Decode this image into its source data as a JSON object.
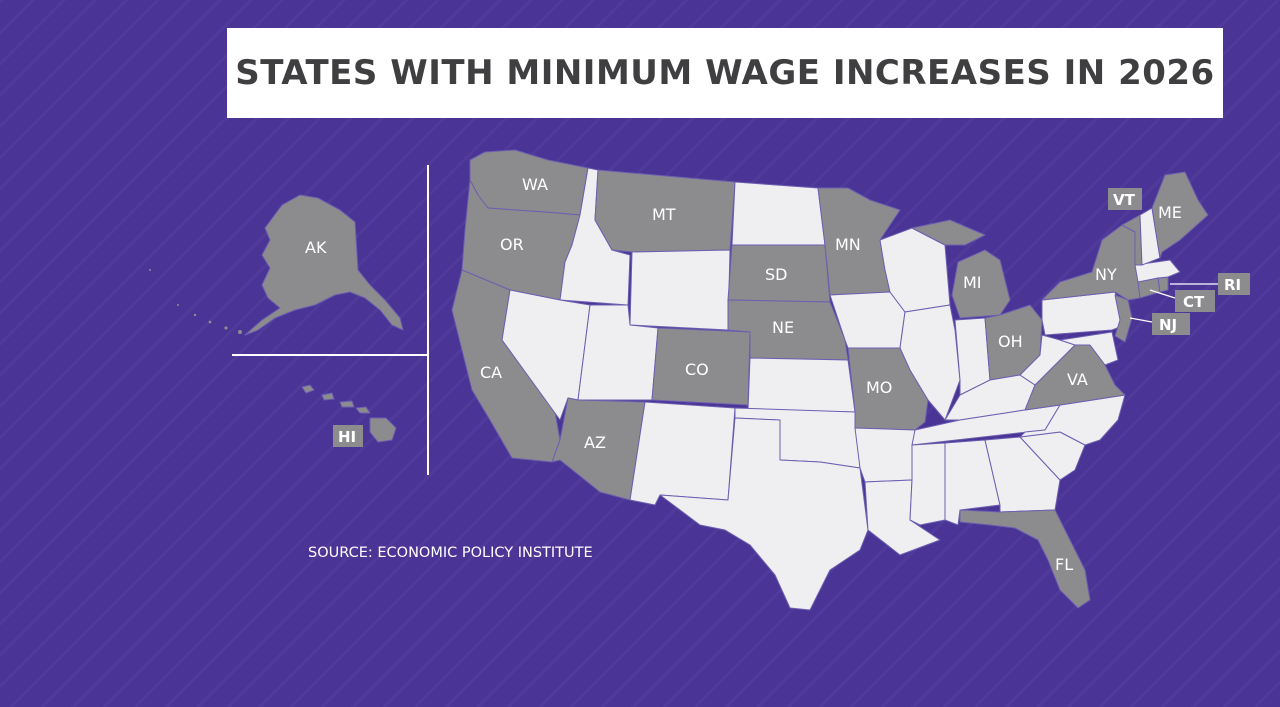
{
  "title": "STATES WITH MINIMUM WAGE INCREASES IN 2026",
  "source": "SOURCE: ECONOMIC POLICY INSTITUTE",
  "colors": {
    "background": "#4a3496",
    "increase": "#8c8c8f",
    "no_increase": "#efeff2",
    "state_border": "#6c5fb0",
    "title_text": "#3f3f41"
  },
  "legend_states": [
    "AK",
    "HI",
    "WA",
    "OR",
    "CA",
    "AZ",
    "MT",
    "CO",
    "SD",
    "NE",
    "MN",
    "MO",
    "MI",
    "OH",
    "VA",
    "FL",
    "NY",
    "VT",
    "ME",
    "RI",
    "CT",
    "NJ"
  ],
  "labels": {
    "AK": "AK",
    "HI": "HI",
    "WA": "WA",
    "OR": "OR",
    "CA": "CA",
    "AZ": "AZ",
    "MT": "MT",
    "CO": "CO",
    "SD": "SD",
    "NE": "NE",
    "MN": "MN",
    "MO": "MO",
    "MI": "MI",
    "OH": "OH",
    "VA": "VA",
    "FL": "FL",
    "NY": "NY",
    "VT": "VT",
    "ME": "ME",
    "RI": "RI",
    "CT": "CT",
    "NJ": "NJ"
  }
}
